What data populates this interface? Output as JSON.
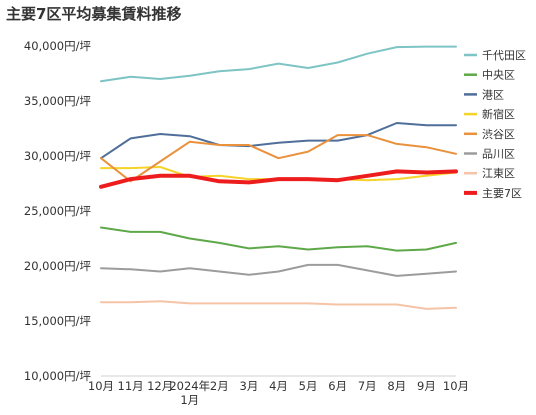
{
  "chart_data": {
    "type": "line",
    "title": "主要7区平均募集賃料推移",
    "x": [
      "10月",
      "11月",
      "12月",
      "2024年\n1月",
      "2月",
      "3月",
      "4月",
      "5月",
      "6月",
      "7月",
      "8月",
      "9月",
      "10月"
    ],
    "y_tick_labels": [
      "10,000円/坪",
      "15,000円/坪",
      "20,000円/坪",
      "25,000円/坪",
      "30,000円/坪",
      "35,000円/坪",
      "40,000円/坪"
    ],
    "ylim": [
      10000,
      40000
    ],
    "ystep": 5000,
    "legend_position": "right",
    "grid": false,
    "series": [
      {
        "name": "千代田区",
        "color": "#7ec4c4",
        "width": 2,
        "values": [
          36800,
          37200,
          37000,
          37300,
          37700,
          37900,
          38400,
          38000,
          38500,
          39300,
          39900,
          39950,
          39950
        ]
      },
      {
        "name": "中央区",
        "color": "#5ea84a",
        "width": 2,
        "values": [
          23500,
          23100,
          23100,
          22500,
          22100,
          21600,
          21800,
          21500,
          21700,
          21800,
          21400,
          21500,
          22100
        ]
      },
      {
        "name": "港区",
        "color": "#4f6f9a",
        "width": 2,
        "values": [
          29800,
          31600,
          32000,
          31800,
          31000,
          30900,
          31200,
          31400,
          31400,
          31900,
          33000,
          32800,
          32800
        ]
      },
      {
        "name": "新宿区",
        "color": "#f5d328",
        "width": 2,
        "values": [
          28900,
          28900,
          29000,
          28100,
          28200,
          27900,
          27900,
          27900,
          27900,
          27800,
          27900,
          28200,
          28500
        ]
      },
      {
        "name": "渋谷区",
        "color": "#e9913b",
        "width": 2,
        "values": [
          29800,
          27700,
          29500,
          31300,
          31000,
          31000,
          29800,
          30400,
          31900,
          31900,
          31100,
          30800,
          30200
        ]
      },
      {
        "name": "品川区",
        "color": "#9c9c9c",
        "width": 2,
        "values": [
          19800,
          19700,
          19500,
          19800,
          19500,
          19200,
          19500,
          20100,
          20100,
          19600,
          19100,
          19300,
          19500
        ]
      },
      {
        "name": "江東区",
        "color": "#f5c3a6",
        "width": 2,
        "values": [
          16700,
          16700,
          16800,
          16600,
          16600,
          16600,
          16600,
          16600,
          16500,
          16500,
          16500,
          16100,
          16200
        ]
      },
      {
        "name": "主要7区",
        "color": "#ee1d1d",
        "width": 4,
        "values": [
          27200,
          27900,
          28200,
          28200,
          27700,
          27600,
          27900,
          27900,
          27800,
          28200,
          28600,
          28500,
          28600
        ]
      }
    ]
  }
}
